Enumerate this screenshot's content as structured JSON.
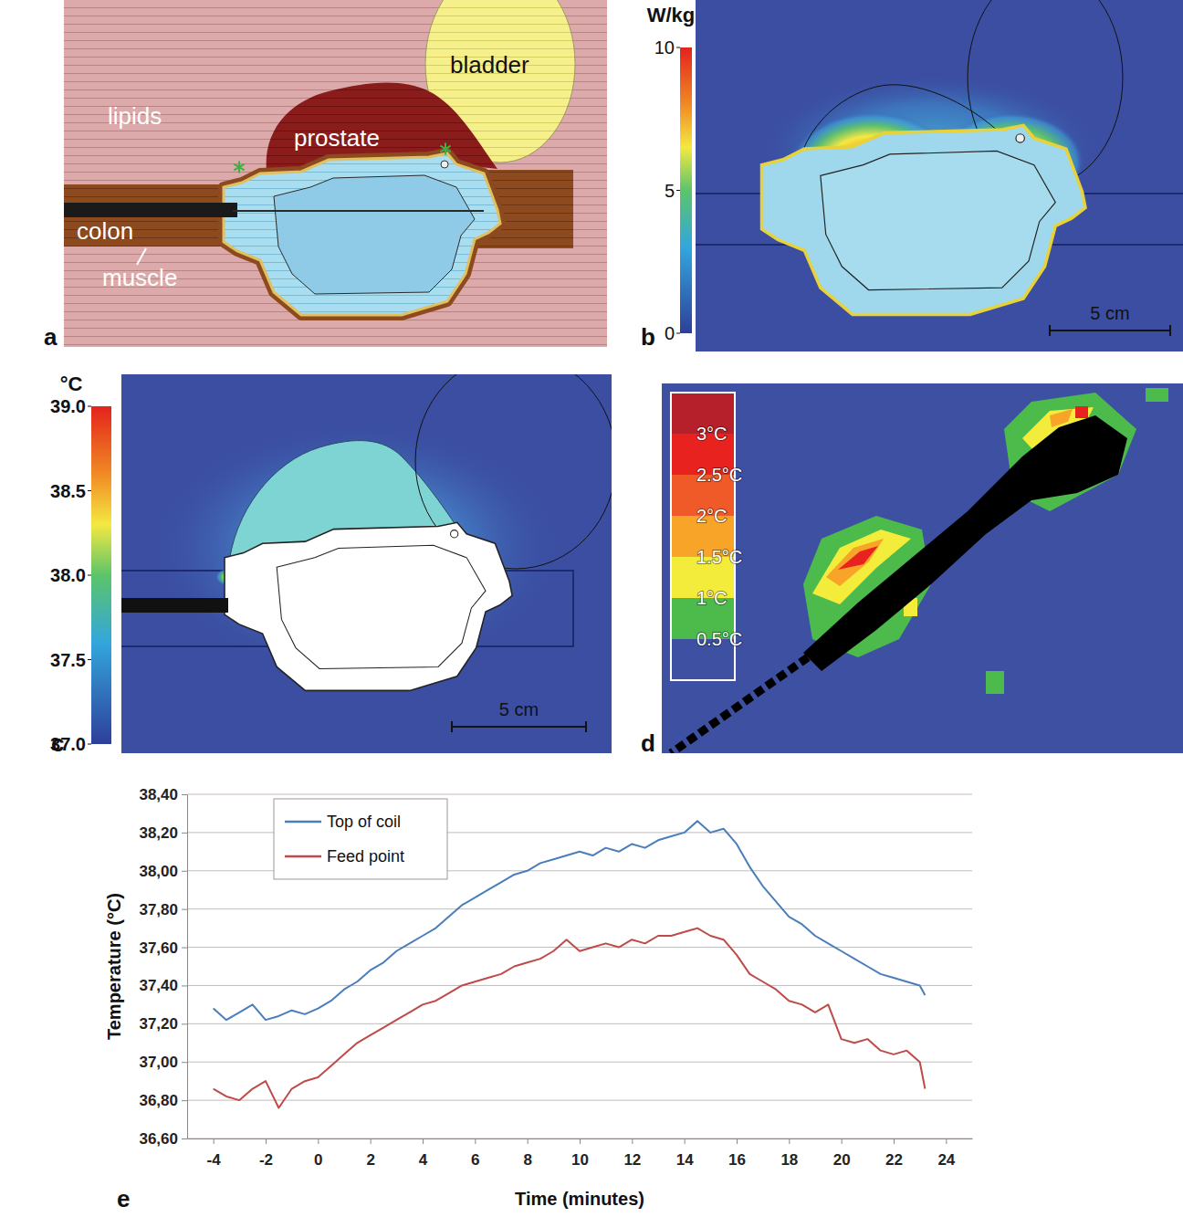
{
  "panels": {
    "a": {
      "letter": "a",
      "labels": [
        "lipids",
        "prostate",
        "bladder",
        "colon",
        "muscle"
      ]
    },
    "b": {
      "letter": "b",
      "colorbar": {
        "title": "W/kg",
        "range": [
          0,
          10
        ],
        "ticks": [
          0,
          5,
          10
        ]
      },
      "scale_bar": "5 cm"
    },
    "c": {
      "letter": "c",
      "colorbar": {
        "title": "°C",
        "range": [
          37,
          39
        ],
        "ticks": [
          {
            "value": 37,
            "label": "37.0"
          },
          {
            "value": 37.5,
            "label": "37.5"
          },
          {
            "value": 38,
            "label": "38.0"
          },
          {
            "value": 38.5,
            "label": "38.5"
          },
          {
            "value": 39,
            "label": "39.0"
          }
        ]
      },
      "scale_bar": "5 cm"
    },
    "d": {
      "letter": "d",
      "legend": {
        "labels": [
          "3°C",
          "2.5°C",
          "2°C",
          "1.5°C",
          "1°C",
          "0.5°C"
        ],
        "colors": [
          "#b5202a",
          "#e8231f",
          "#f05a28",
          "#f7a428",
          "#f3ec3a",
          "#4cbb4c",
          "#3d50a2"
        ]
      }
    },
    "e": {
      "letter": "e"
    }
  },
  "chart_data": {
    "type": "line",
    "xlabel": "Time (minutes)",
    "ylabel": "Temperature (°C)",
    "x": [
      -4,
      -3.5,
      -3,
      -2.5,
      -2,
      -1.5,
      -1,
      -0.5,
      0,
      0.5,
      1,
      1.5,
      2,
      2.5,
      3,
      3.5,
      4,
      4.5,
      5,
      5.5,
      6,
      6.5,
      7,
      7.5,
      8,
      8.5,
      9,
      9.5,
      10,
      10.5,
      11,
      11.5,
      12,
      12.5,
      13,
      13.5,
      14,
      14.5,
      15,
      15.5,
      16,
      16.5,
      17,
      17.5,
      18,
      18.5,
      19,
      19.5,
      20,
      20.5,
      21,
      21.5,
      22,
      22.5,
      23,
      23.2
    ],
    "series": [
      {
        "name": "Top of coil",
        "color": "#4a7ebb",
        "values": [
          37.28,
          37.22,
          37.26,
          37.3,
          37.22,
          37.24,
          37.27,
          37.25,
          37.28,
          37.32,
          37.38,
          37.42,
          37.48,
          37.52,
          37.58,
          37.62,
          37.66,
          37.7,
          37.76,
          37.82,
          37.86,
          37.9,
          37.94,
          37.98,
          38.0,
          38.04,
          38.06,
          38.08,
          38.1,
          38.08,
          38.12,
          38.1,
          38.14,
          38.12,
          38.16,
          38.18,
          38.2,
          38.26,
          38.2,
          38.22,
          38.14,
          38.02,
          37.92,
          37.84,
          37.76,
          37.72,
          37.66,
          37.62,
          37.58,
          37.54,
          37.5,
          37.46,
          37.44,
          37.42,
          37.4,
          37.35
        ]
      },
      {
        "name": "Feed point",
        "color": "#be4b48",
        "values": [
          36.86,
          36.82,
          36.8,
          36.86,
          36.9,
          36.76,
          36.86,
          36.9,
          36.92,
          36.98,
          37.04,
          37.1,
          37.14,
          37.18,
          37.22,
          37.26,
          37.3,
          37.32,
          37.36,
          37.4,
          37.42,
          37.44,
          37.46,
          37.5,
          37.52,
          37.54,
          37.58,
          37.64,
          37.58,
          37.6,
          37.62,
          37.6,
          37.64,
          37.62,
          37.66,
          37.66,
          37.68,
          37.7,
          37.66,
          37.64,
          37.56,
          37.46,
          37.42,
          37.38,
          37.32,
          37.3,
          37.26,
          37.3,
          37.12,
          37.1,
          37.12,
          37.06,
          37.04,
          37.06,
          37.0,
          36.86
        ]
      }
    ],
    "xlim": [
      -5,
      25
    ],
    "xticks": [
      -4,
      -2,
      0,
      2,
      4,
      6,
      8,
      10,
      12,
      14,
      16,
      18,
      20,
      22,
      24
    ],
    "ylim": [
      36.6,
      38.4
    ],
    "yticks": [
      {
        "value": 36.6,
        "label": "36,60"
      },
      {
        "value": 36.8,
        "label": "36,80"
      },
      {
        "value": 37.0,
        "label": "37,00"
      },
      {
        "value": 37.2,
        "label": "37,20"
      },
      {
        "value": 37.4,
        "label": "37,40"
      },
      {
        "value": 37.6,
        "label": "37,60"
      },
      {
        "value": 37.8,
        "label": "37,80"
      },
      {
        "value": 38.0,
        "label": "38,00"
      },
      {
        "value": 38.2,
        "label": "38,20"
      },
      {
        "value": 38.4,
        "label": "38,40"
      }
    ],
    "grid": true,
    "legend": "top-left"
  }
}
